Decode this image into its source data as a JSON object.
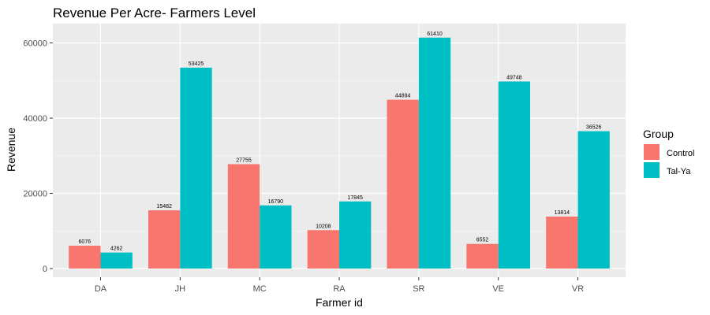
{
  "chart_data": {
    "type": "bar",
    "title": "Revenue Per Acre- Farmers Level",
    "xlabel": "Farmer id",
    "ylabel": "Revenue",
    "categories": [
      "DA",
      "JH",
      "MC",
      "RA",
      "SR",
      "VE",
      "VR"
    ],
    "series": [
      {
        "name": "Control",
        "color": "#F8766D",
        "values": [
          6076,
          15482,
          27755,
          10208,
          44894,
          6552,
          13814
        ]
      },
      {
        "name": "Tal-Ya",
        "color": "#00BFC4",
        "values": [
          4262,
          53425,
          16790,
          17845,
          61410,
          49748,
          36526
        ]
      }
    ],
    "ylim": [
      0,
      64000
    ],
    "yticks": [
      0,
      20000,
      40000,
      60000
    ],
    "grid": true,
    "legend": {
      "title": "Group",
      "position": "right"
    },
    "panel_background": "#EBEBEB"
  }
}
